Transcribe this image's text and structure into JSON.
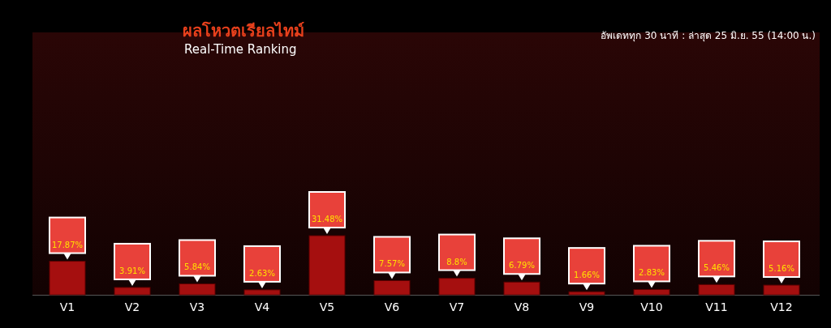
{
  "chart_data": {
    "type": "bar",
    "title": "ผลโหวตเรียลไทม์",
    "subtitle": "Real-Time Ranking",
    "annotations": [
      "อัพเดททุก 30 นาที : ล่าสุด 25 มิ.ย. 55 (14:00 น.)"
    ],
    "categories": [
      "V1",
      "V2",
      "V3",
      "V4",
      "V5",
      "V6",
      "V7",
      "V8",
      "V9",
      "V10",
      "V11",
      "V12"
    ],
    "values": [
      17.87,
      3.91,
      5.84,
      2.63,
      31.48,
      7.57,
      8.8,
      6.79,
      1.66,
      2.83,
      5.46,
      5.16
    ],
    "value_labels": [
      "17.87%",
      "3.91%",
      "5.84%",
      "2.63%",
      "31.48%",
      "7.57%",
      "8.8%",
      "6.79%",
      "1.66%",
      "2.83%",
      "5.46%",
      "5.16%"
    ],
    "color": "#a50f0f"
  }
}
